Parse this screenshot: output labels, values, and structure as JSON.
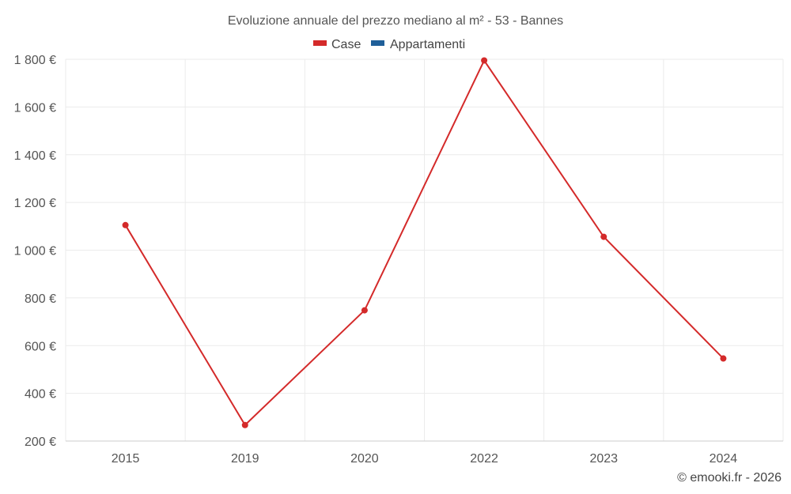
{
  "chart_data": {
    "type": "line",
    "title": "Evoluzione annuale del prezzo mediano al m² - 53 - Bannes",
    "categories": [
      "2015",
      "2019",
      "2020",
      "2022",
      "2023",
      "2024"
    ],
    "series": [
      {
        "name": "Case",
        "color": "#d42a2a",
        "values": [
          1105,
          267,
          748,
          1795,
          1056,
          546
        ]
      },
      {
        "name": "Appartamenti",
        "color": "#1f5f99",
        "values": [
          null,
          null,
          null,
          null,
          null,
          null
        ]
      }
    ],
    "yticks": [
      "200 €",
      "400 €",
      "600 €",
      "800 €",
      "1 000 €",
      "1 200 €",
      "1 400 €",
      "1 600 €",
      "1 800 €"
    ],
    "ylim": [
      200,
      1800
    ],
    "grid": true,
    "legend_position": "top-center"
  },
  "credit": "© emooki.fr - 2026"
}
